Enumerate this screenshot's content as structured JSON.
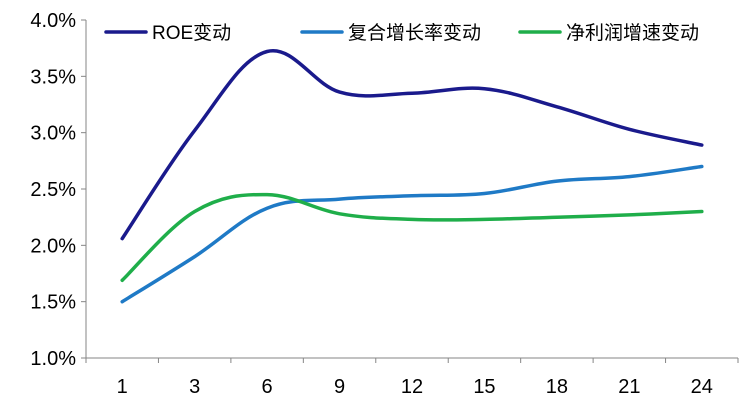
{
  "chart_data": {
    "type": "line",
    "x": [
      1,
      3,
      6,
      9,
      12,
      15,
      18,
      21,
      24
    ],
    "x_tick_labels": [
      "1",
      "3",
      "6",
      "9",
      "12",
      "15",
      "18",
      "21",
      "24"
    ],
    "y_tick_labels": [
      "1.0%",
      "1.5%",
      "2.0%",
      "2.5%",
      "3.0%",
      "3.5%",
      "4.0%"
    ],
    "ylim": [
      1.0,
      4.0
    ],
    "ytick_step": 0.5,
    "grid": false,
    "legend_position": "top",
    "series": [
      {
        "name": "ROE变动",
        "color": "#1a1a8c",
        "values": [
          2.06,
          3.02,
          3.72,
          3.36,
          3.35,
          3.39,
          3.23,
          3.03,
          2.89
        ]
      },
      {
        "name": "复合增长率变动",
        "color": "#1f7ac6",
        "values": [
          1.5,
          1.9,
          2.33,
          2.41,
          2.44,
          2.46,
          2.57,
          2.61,
          2.7
        ]
      },
      {
        "name": "净利润增速变动",
        "color": "#1fae4a",
        "values": [
          1.69,
          2.3,
          2.45,
          2.28,
          2.23,
          2.23,
          2.25,
          2.27,
          2.3
        ]
      }
    ]
  }
}
